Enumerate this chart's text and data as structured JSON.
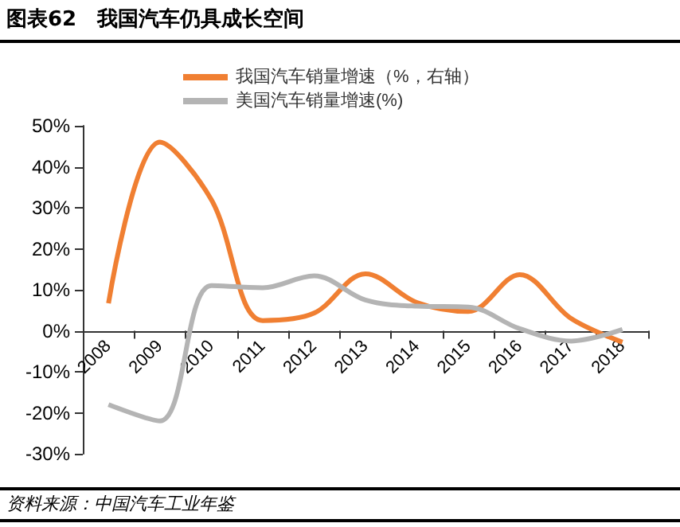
{
  "chart_data": {
    "type": "line",
    "title": "图表62　我国汽车仍具成长空间",
    "categories": [
      "2008",
      "2009",
      "2010",
      "2011",
      "2012",
      "2013",
      "2014",
      "2015",
      "2016",
      "2017",
      "2018"
    ],
    "series": [
      {
        "name": "我国汽车销量增速（%，右轴）",
        "color": "#f07f32",
        "values": [
          6.7,
          46,
          32,
          2.5,
          4.3,
          13.9,
          6.9,
          4.7,
          13.7,
          3,
          -2.8
        ]
      },
      {
        "name": "美国汽车销量增速(%)",
        "color": "#b4b4b4",
        "values": [
          -18,
          -22,
          11,
          10.5,
          13.4,
          7.5,
          6,
          5.8,
          0.5,
          -2.5,
          0.3
        ]
      }
    ],
    "ylim": [
      -30,
      50
    ],
    "yticks": [
      {
        "value": -30,
        "label": "-30%"
      },
      {
        "value": -20,
        "label": "-20%"
      },
      {
        "value": -10,
        "label": "-10%"
      },
      {
        "value": 0,
        "label": "0%"
      },
      {
        "value": 10,
        "label": "10%"
      },
      {
        "value": 20,
        "label": "20%"
      },
      {
        "value": 30,
        "label": "30%"
      },
      {
        "value": 40,
        "label": "40%"
      },
      {
        "value": 50,
        "label": "50%"
      }
    ],
    "legend": "top",
    "marker": "none",
    "line_style": "solid",
    "annotations": [
      "资料来源：中国汽车工业年鉴"
    ]
  }
}
